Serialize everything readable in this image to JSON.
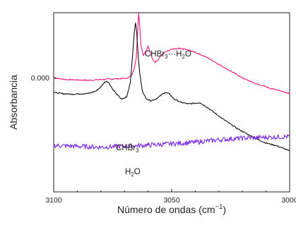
{
  "chart_data": {
    "type": "line",
    "xlabel": "Número de ondas (cm⁻¹)",
    "ylabel": "Absorbancia",
    "xlim": [
      3100,
      3000
    ],
    "x_ticks": [
      3100,
      3050,
      3000
    ],
    "x_tick_labels": [
      "3100",
      "3050",
      "3000"
    ],
    "y_ticks": [
      0.0
    ],
    "y_tick_labels": [
      "0.000"
    ],
    "ylim": [
      -0.028,
      0.016
    ],
    "series": [
      {
        "name": "CHBr₃···H₂O",
        "label_text": {
          "main": "CHBr",
          "sub": "3",
          "suffix": "···H",
          "sub2": "2",
          "tail": "O"
        },
        "color": "#e8187a",
        "points": [
          [
            3100,
            0.0
          ],
          [
            3095,
            -0.0004
          ],
          [
            3090,
            -0.0005
          ],
          [
            3085,
            -0.0006
          ],
          [
            3080,
            -0.0004
          ],
          [
            3076,
            -0.0003
          ],
          [
            3072,
            -0.0002
          ],
          [
            3069,
            -0.0001
          ],
          [
            3067,
            0.0006
          ],
          [
            3066,
            0.002
          ],
          [
            3065,
            0.005
          ],
          [
            3064.3,
            0.0125
          ],
          [
            3064,
            0.016
          ],
          [
            3063.5,
            0.0125
          ],
          [
            3063,
            0.008
          ],
          [
            3062,
            0.0055
          ],
          [
            3061,
            0.0065
          ],
          [
            3060,
            0.0078
          ],
          [
            3059,
            0.0062
          ],
          [
            3058,
            0.0045
          ],
          [
            3057,
            0.0038
          ],
          [
            3056,
            0.0042
          ],
          [
            3055,
            0.0052
          ],
          [
            3053,
            0.0063
          ],
          [
            3050,
            0.007
          ],
          [
            3047,
            0.0072
          ],
          [
            3044,
            0.007
          ],
          [
            3041,
            0.0065
          ],
          [
            3038,
            0.0058
          ],
          [
            3035,
            0.005
          ],
          [
            3032,
            0.004
          ],
          [
            3029,
            0.003
          ],
          [
            3026,
            0.002
          ],
          [
            3023,
            0.001
          ],
          [
            3020,
            0.0
          ],
          [
            3017,
            -0.0008
          ],
          [
            3014,
            -0.0015
          ],
          [
            3011,
            -0.002
          ],
          [
            3008,
            -0.0026
          ],
          [
            3005,
            -0.003
          ],
          [
            3002,
            -0.0035
          ],
          [
            3000,
            -0.0038
          ]
        ]
      },
      {
        "name": "CHBr₃",
        "label_text": {
          "main": "CHBr",
          "sub": "3"
        },
        "color": "#111111",
        "points": [
          [
            3100,
            -0.0036
          ],
          [
            3096,
            -0.0039
          ],
          [
            3092,
            -0.004
          ],
          [
            3088,
            -0.0039
          ],
          [
            3085,
            -0.0038
          ],
          [
            3082,
            -0.0032
          ],
          [
            3080,
            -0.0022
          ],
          [
            3078.5,
            -0.0011
          ],
          [
            3077.5,
            -0.0008
          ],
          [
            3076.5,
            -0.0013
          ],
          [
            3075,
            -0.0028
          ],
          [
            3073,
            -0.0042
          ],
          [
            3071,
            -0.0053
          ],
          [
            3069,
            -0.0046
          ],
          [
            3067.5,
            -0.001
          ],
          [
            3066.5,
            0.006
          ],
          [
            3065.8,
            0.0115
          ],
          [
            3065.3,
            0.0135
          ],
          [
            3064.8,
            0.011
          ],
          [
            3064.2,
            0.0055
          ],
          [
            3063.5,
            0.001
          ],
          [
            3062.5,
            -0.003
          ],
          [
            3061,
            -0.005
          ],
          [
            3059,
            -0.0056
          ],
          [
            3057,
            -0.0053
          ],
          [
            3055,
            -0.0045
          ],
          [
            3053,
            -0.0036
          ],
          [
            3051,
            -0.0039
          ],
          [
            3049,
            -0.0052
          ],
          [
            3046,
            -0.006
          ],
          [
            3043,
            -0.0064
          ],
          [
            3040,
            -0.0062
          ],
          [
            3038,
            -0.0061
          ],
          [
            3035,
            -0.0072
          ],
          [
            3032,
            -0.0085
          ],
          [
            3029,
            -0.0098
          ],
          [
            3026,
            -0.011
          ],
          [
            3022,
            -0.0125
          ],
          [
            3018,
            -0.0138
          ],
          [
            3014,
            -0.015
          ],
          [
            3010,
            -0.016
          ],
          [
            3006,
            -0.0166
          ],
          [
            3003,
            -0.0172
          ],
          [
            3000,
            -0.018
          ]
        ]
      },
      {
        "name": "H₂O",
        "label_text": {
          "main": "H",
          "sub": "2",
          "suffix": "O"
        },
        "color": "#7b2be0",
        "points": [
          [
            3100,
            -0.0166
          ],
          [
            3090,
            -0.0168
          ],
          [
            3080,
            -0.017
          ],
          [
            3070,
            -0.0168
          ],
          [
            3060,
            -0.0165
          ],
          [
            3050,
            -0.0162
          ],
          [
            3040,
            -0.0158
          ],
          [
            3030,
            -0.0152
          ],
          [
            3020,
            -0.0148
          ],
          [
            3010,
            -0.0146
          ],
          [
            3000,
            -0.0144
          ]
        ],
        "noise_amplitude": 0.0006
      }
    ]
  }
}
